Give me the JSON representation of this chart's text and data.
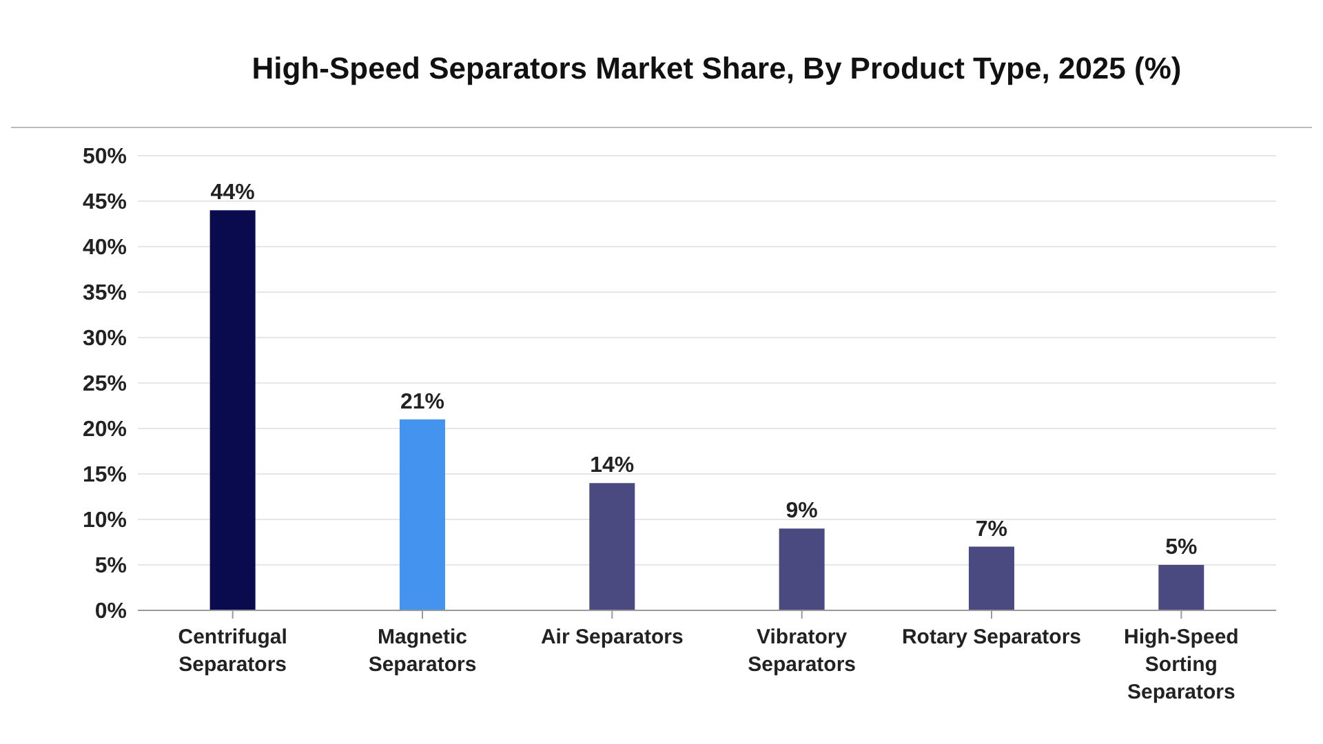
{
  "chart_data": {
    "type": "bar",
    "title": "High-Speed Separators Market Share, By Product Type, 2025 (%)",
    "categories": [
      "Centrifugal Separators",
      "Magnetic Separators",
      "Air Separators",
      "Vibratory Separators",
      "Rotary Separators",
      "High-Speed Sorting Separators"
    ],
    "values": [
      44,
      21,
      14,
      9,
      7,
      5
    ],
    "colors": [
      "#0a0a4f",
      "#4393ef",
      "#4b4a80",
      "#4b4a80",
      "#4b4a80",
      "#4b4a80"
    ],
    "value_labels": [
      "44%",
      "21%",
      "14%",
      "9%",
      "7%",
      "5%"
    ],
    "ylim": [
      0,
      50
    ],
    "yticks": [
      {
        "value": 0,
        "label": "0%"
      },
      {
        "value": 5,
        "label": "5%"
      },
      {
        "value": 10,
        "label": "10%"
      },
      {
        "value": 15,
        "label": "15%"
      },
      {
        "value": 20,
        "label": "20%"
      },
      {
        "value": 25,
        "label": "25%"
      },
      {
        "value": 30,
        "label": "30%"
      },
      {
        "value": 35,
        "label": "35%"
      },
      {
        "value": 40,
        "label": "40%"
      },
      {
        "value": 45,
        "label": "45%"
      },
      {
        "value": 50,
        "label": "50%"
      }
    ],
    "grid": "y"
  }
}
